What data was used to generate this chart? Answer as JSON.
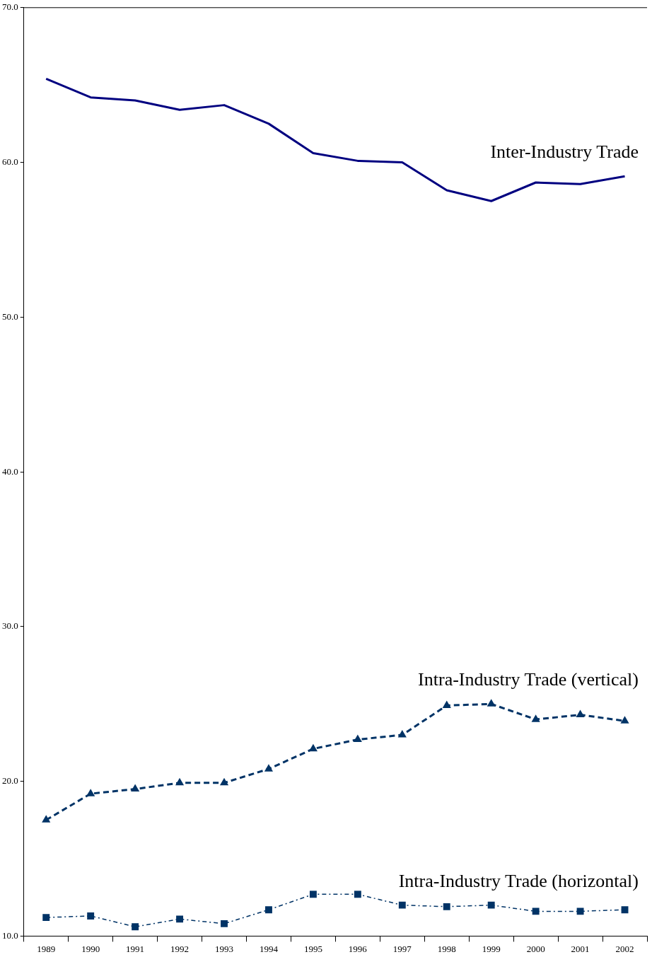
{
  "chart_data": {
    "type": "line",
    "categories": [
      "1989",
      "1990",
      "1991",
      "1992",
      "1993",
      "1994",
      "1995",
      "1996",
      "1997",
      "1998",
      "1999",
      "2000",
      "2001",
      "2002"
    ],
    "ylim": [
      10,
      70
    ],
    "yticks": [
      {
        "value": 10,
        "label": "10.0"
      },
      {
        "value": 20,
        "label": "20.0"
      },
      {
        "value": 30,
        "label": "30.0"
      },
      {
        "value": 40,
        "label": "40.0"
      },
      {
        "value": 50,
        "label": "50.0"
      },
      {
        "value": 60,
        "label": "60.0"
      },
      {
        "value": 70,
        "label": "70.0"
      }
    ],
    "grid": false,
    "legend": false,
    "series": [
      {
        "name": "Inter-Industry Trade",
        "color": "#000080",
        "line_style": "solid",
        "marker": "none",
        "values": [
          65.4,
          64.2,
          64.0,
          63.4,
          63.7,
          62.5,
          60.6,
          60.1,
          60.0,
          58.2,
          57.5,
          58.7,
          58.6,
          59.1
        ]
      },
      {
        "name": "Intra-Industry Trade (vertical)",
        "color": "#003366",
        "line_style": "dashed",
        "marker": "triangle",
        "values": [
          17.5,
          19.2,
          19.5,
          19.9,
          19.9,
          20.8,
          22.1,
          22.7,
          23.0,
          24.9,
          25.0,
          24.0,
          24.3,
          23.9
        ]
      },
      {
        "name": "Intra-Industry Trade (horizontal)",
        "color": "#003366",
        "line_style": "dotted",
        "marker": "square",
        "values": [
          11.2,
          11.3,
          10.6,
          11.1,
          10.8,
          11.7,
          12.7,
          12.7,
          12.0,
          11.9,
          12.0,
          11.6,
          11.6,
          11.7
        ]
      }
    ]
  }
}
